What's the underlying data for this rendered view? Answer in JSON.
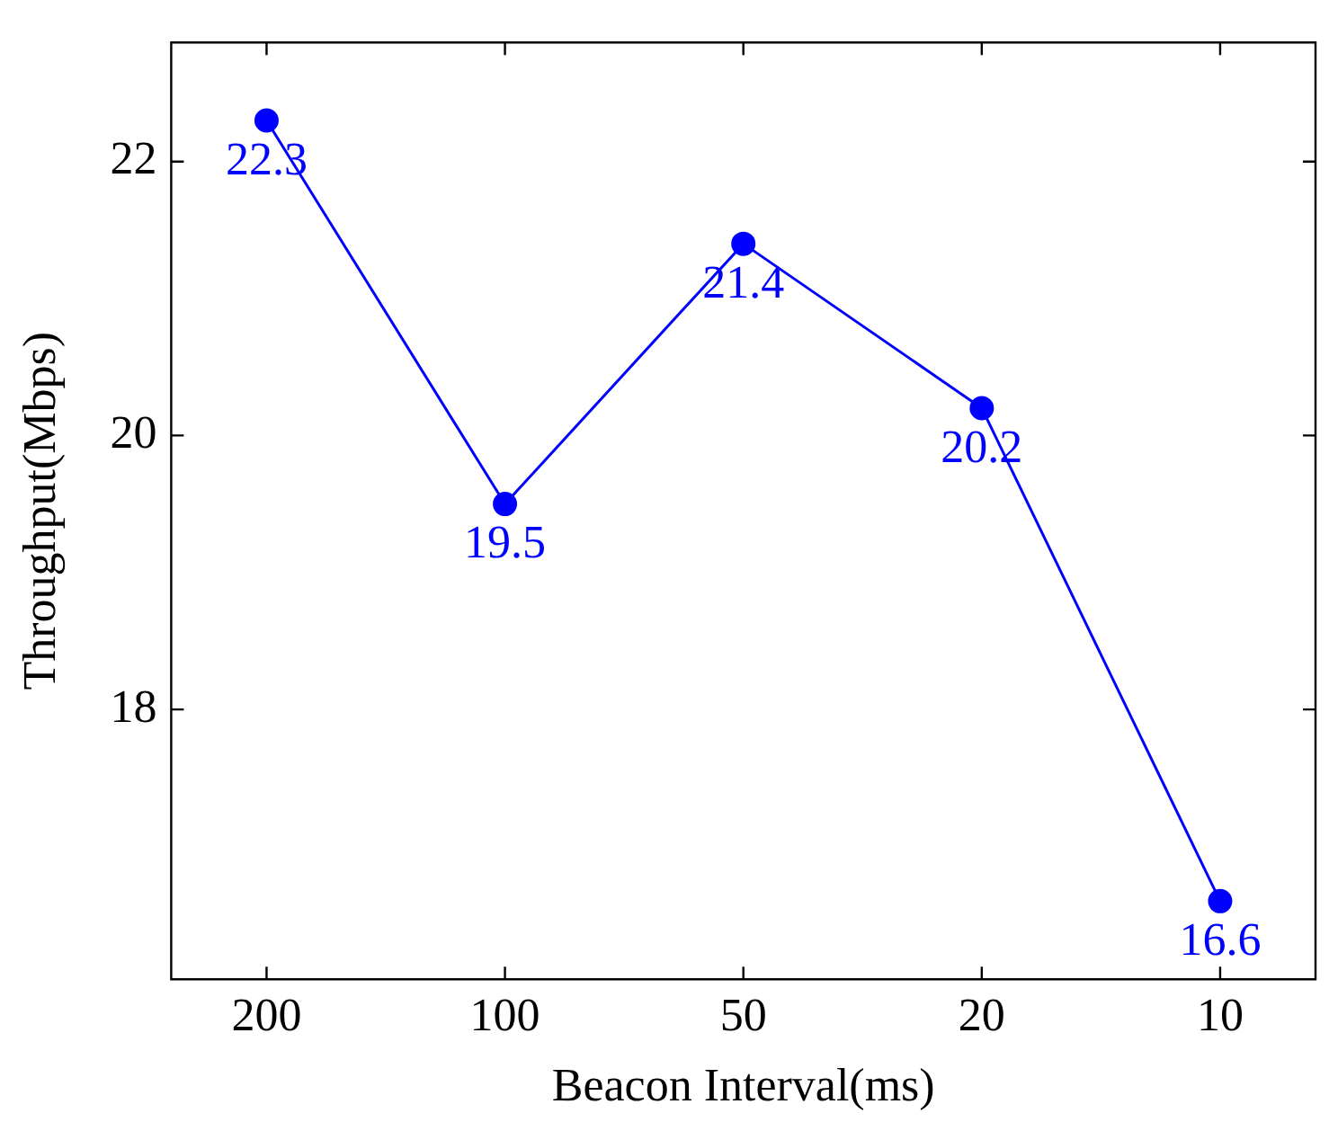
{
  "chart_data": {
    "type": "line",
    "xlabel": "Beacon Interval(ms)",
    "ylabel": "Throughput(Mbps)",
    "categories": [
      "200",
      "100",
      "50",
      "20",
      "10"
    ],
    "series": [
      {
        "color": "#0000ff",
        "values": [
          22.3,
          19.5,
          21.4,
          20.2,
          16.6
        ]
      }
    ],
    "ylim": [
      16.03,
      22.87
    ],
    "yticks": [
      18,
      20,
      22
    ],
    "marker": "circle",
    "line_style": "solid",
    "data_labels": true,
    "grid": false,
    "legend": false
  }
}
